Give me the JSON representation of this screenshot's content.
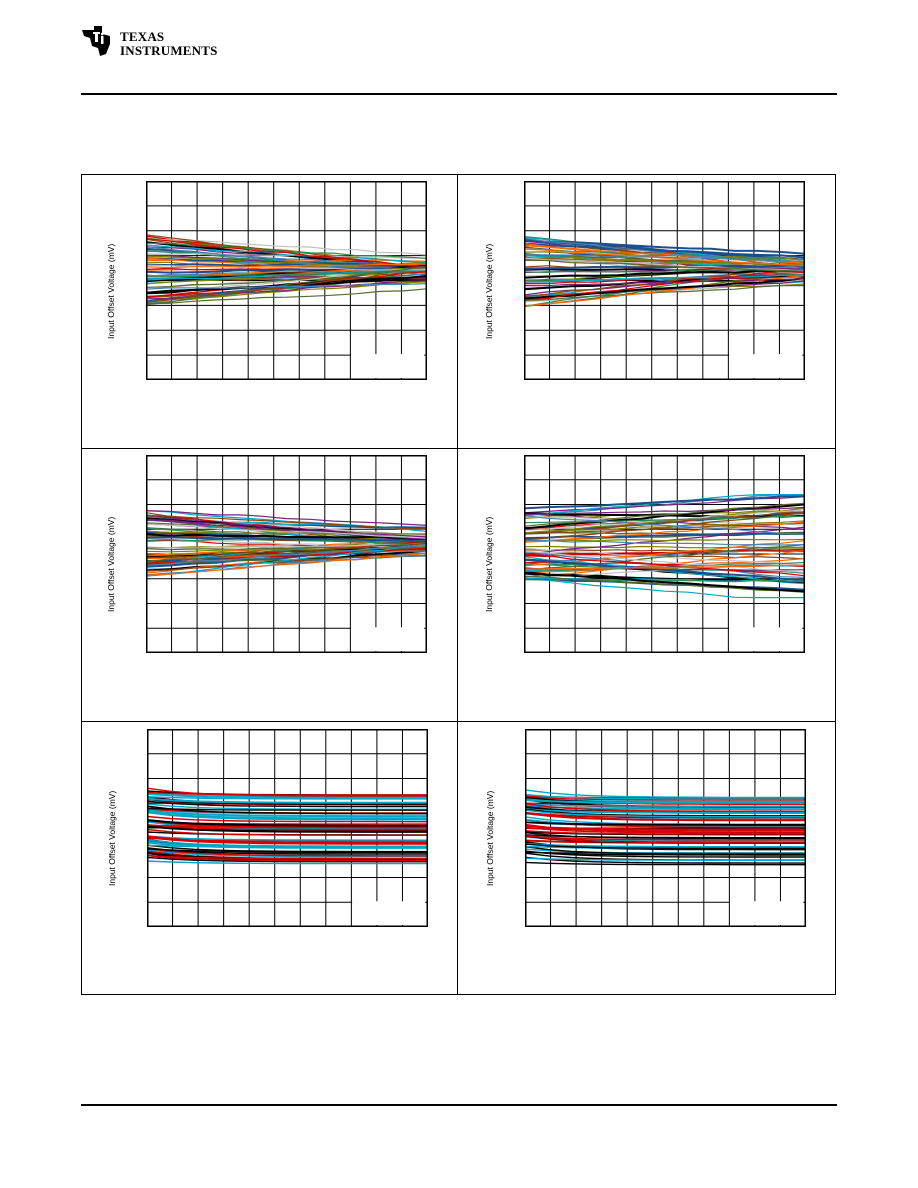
{
  "header": {
    "brand_line1": "Texas",
    "brand_line2": "Instruments"
  },
  "chart_data": [
    {
      "type": "line",
      "id": "chart-1",
      "ylabel": "Input Offset Voltage (mV)",
      "style": "mixed",
      "series_count": 60
    },
    {
      "type": "line",
      "id": "chart-2",
      "ylabel": "Input Offset Voltage (mV)",
      "style": "mixed",
      "series_count": 60
    },
    {
      "type": "line",
      "id": "chart-3",
      "ylabel": "Input Offset Voltage (mV)",
      "style": "mixed",
      "series_count": 60
    },
    {
      "type": "line",
      "id": "chart-4",
      "ylabel": "Input Offset Voltage (mV)",
      "style": "crossing",
      "series_count": 60
    },
    {
      "type": "line",
      "id": "chart-5",
      "ylabel": "Input Offset Voltage (mV)",
      "style": "settling",
      "series_count": 55
    },
    {
      "type": "line",
      "id": "chart-6",
      "ylabel": "Input Offset Voltage (mV)",
      "style": "settling",
      "series_count": 55
    }
  ],
  "colors": {
    "palette": [
      "#000000",
      "#d40000",
      "#00a8c8",
      "#7a1f7a",
      "#8b4513",
      "#2e8b57",
      "#1f4e8c",
      "#808000",
      "#c0c0c0",
      "#ff6600",
      "#556b2f",
      "#4682b4"
    ],
    "settling_palette": [
      "#000000",
      "#d40000",
      "#00a8c8"
    ]
  }
}
